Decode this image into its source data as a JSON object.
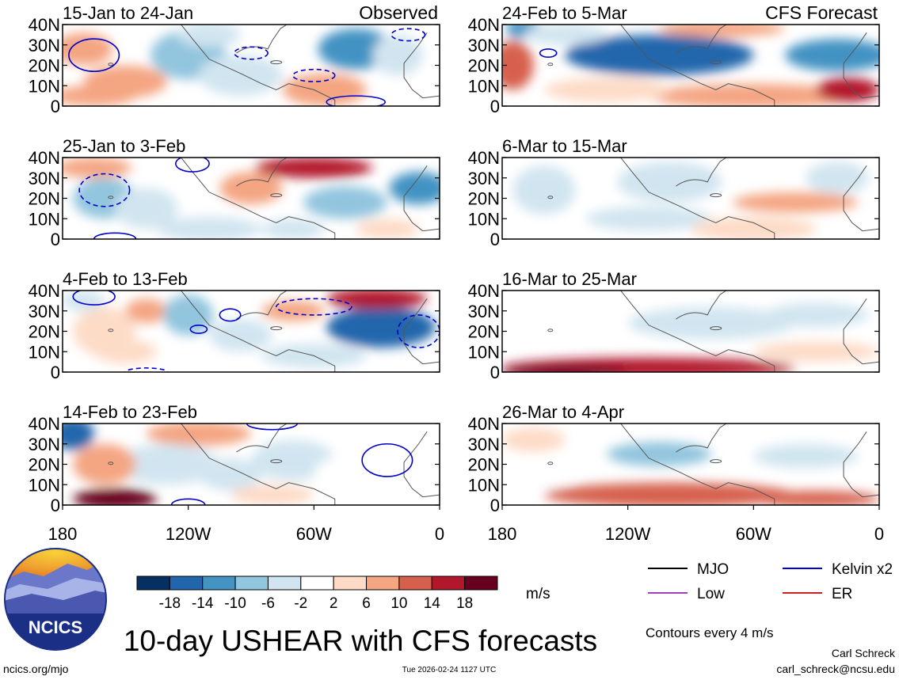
{
  "chart_data": {
    "type": "heatmap",
    "title": "10-day USHEAR with CFS forecasts",
    "variable": "USHEAR",
    "units": "m/s",
    "contour_interval_text": "Contours every 4 m/s",
    "x_range": [
      180,
      0
    ],
    "x_ticks": [
      "180",
      "120W",
      "60W",
      "0"
    ],
    "y_range": [
      0,
      40
    ],
    "y_ticks": [
      "0",
      "10N",
      "20N",
      "30N",
      "40N"
    ],
    "colorbar": {
      "labels": [
        "-18",
        "-14",
        "-10",
        "-6",
        "-2",
        "2",
        "6",
        "10",
        "14",
        "18"
      ],
      "colors": [
        "#053061",
        "#2166ac",
        "#4393c3",
        "#92c5de",
        "#d1e5f0",
        "#ffffff",
        "#fddbc7",
        "#f4a582",
        "#d6604d",
        "#b2182b",
        "#67001f"
      ]
    },
    "legend": [
      {
        "name": "MJO",
        "color": "#000000"
      },
      {
        "name": "Kelvin x2",
        "color": "#0000cc"
      },
      {
        "name": "Low",
        "color": "#a040c0"
      },
      {
        "name": "ER",
        "color": "#cc2020"
      }
    ],
    "column_headers": {
      "left": "Observed",
      "right": "CFS Forecast"
    },
    "panels": [
      {
        "label": "15-Jan to 24-Jan",
        "column": "observed",
        "blobs": [
          [
            -170,
            28,
            14,
            8,
            8
          ],
          [
            -150,
            12,
            20,
            8,
            6
          ],
          [
            -120,
            25,
            18,
            12,
            -8
          ],
          [
            -95,
            15,
            20,
            10,
            -6
          ],
          [
            -40,
            28,
            18,
            10,
            -12
          ],
          [
            -55,
            8,
            20,
            8,
            6
          ],
          [
            -20,
            25,
            12,
            10,
            -6
          ],
          [
            -165,
            5,
            20,
            5,
            6
          ],
          [
            -110,
            35,
            15,
            6,
            -4
          ]
        ],
        "kelvin": [
          [
            -165,
            25,
            12,
            8,
            0
          ],
          [
            -40,
            2,
            14,
            3,
            0
          ]
        ],
        "kelvin_dashed": [
          [
            -90,
            26,
            8,
            3,
            0
          ],
          [
            -60,
            15,
            10,
            3,
            0
          ],
          [
            -15,
            35,
            8,
            3,
            0
          ]
        ]
      },
      {
        "label": "25-Jan to 3-Feb",
        "column": "observed",
        "blobs": [
          [
            -165,
            35,
            18,
            5,
            8
          ],
          [
            -160,
            20,
            15,
            10,
            -8
          ],
          [
            -60,
            35,
            28,
            5,
            14
          ],
          [
            -90,
            25,
            15,
            8,
            8
          ],
          [
            -45,
            18,
            20,
            8,
            -10
          ],
          [
            -10,
            25,
            14,
            8,
            -12
          ],
          [
            -110,
            5,
            25,
            6,
            -6
          ],
          [
            -70,
            5,
            15,
            5,
            -4
          ],
          [
            -140,
            15,
            15,
            10,
            -4
          ],
          [
            -25,
            5,
            15,
            5,
            4
          ]
        ],
        "kelvin": [
          [
            -118,
            37,
            8,
            4,
            0
          ],
          [
            -155,
            0,
            10,
            3,
            0
          ]
        ],
        "kelvin_dashed": [
          [
            -160,
            24,
            12,
            8,
            0
          ]
        ]
      },
      {
        "label": "4-Feb to 13-Feb",
        "column": "observed",
        "blobs": [
          [
            -28,
            22,
            26,
            10,
            -18
          ],
          [
            -30,
            36,
            24,
            5,
            14
          ],
          [
            -140,
            30,
            10,
            6,
            8
          ],
          [
            -120,
            28,
            12,
            10,
            -8
          ],
          [
            -95,
            18,
            15,
            8,
            -6
          ],
          [
            -70,
            30,
            15,
            5,
            6
          ],
          [
            -160,
            20,
            15,
            12,
            4
          ],
          [
            -60,
            8,
            25,
            6,
            -4
          ],
          [
            -170,
            35,
            10,
            5,
            -4
          ],
          [
            -150,
            10,
            15,
            6,
            4
          ]
        ],
        "kelvin": [
          [
            -165,
            37,
            10,
            4,
            0
          ],
          [
            -115,
            21,
            4,
            2,
            0
          ],
          [
            -100,
            28,
            5,
            3,
            0
          ]
        ],
        "kelvin_dashed": [
          [
            -60,
            32,
            18,
            4,
            0
          ],
          [
            -10,
            20,
            10,
            8,
            0
          ],
          [
            -140,
            0,
            10,
            2,
            0
          ]
        ]
      },
      {
        "label": "14-Feb to 23-Feb",
        "column": "observed",
        "blobs": [
          [
            -175,
            35,
            10,
            8,
            -18
          ],
          [
            -155,
            3,
            20,
            5,
            18
          ],
          [
            -115,
            35,
            25,
            6,
            8
          ],
          [
            -130,
            20,
            25,
            10,
            -6
          ],
          [
            -100,
            15,
            15,
            8,
            -4
          ],
          [
            -70,
            22,
            20,
            10,
            -4
          ],
          [
            -40,
            15,
            20,
            10,
            -2
          ],
          [
            -160,
            20,
            15,
            10,
            6
          ],
          [
            -80,
            5,
            20,
            5,
            4
          ]
        ],
        "kelvin": [
          [
            -25,
            22,
            12,
            8,
            0
          ],
          [
            -80,
            40,
            12,
            3,
            0
          ],
          [
            -120,
            0,
            8,
            3,
            0
          ]
        ],
        "kelvin_dashed": []
      },
      {
        "label": "24-Feb to 5-Mar",
        "column": "forecast",
        "blobs": [
          [
            -105,
            25,
            45,
            10,
            -18
          ],
          [
            -20,
            25,
            25,
            8,
            -14
          ],
          [
            -175,
            20,
            10,
            12,
            12
          ],
          [
            -170,
            38,
            8,
            5,
            -14
          ],
          [
            -60,
            5,
            50,
            6,
            8
          ],
          [
            -15,
            8,
            15,
            6,
            14
          ],
          [
            -130,
            8,
            30,
            6,
            4
          ],
          [
            -75,
            38,
            30,
            4,
            6
          ],
          [
            -150,
            35,
            20,
            5,
            -4
          ]
        ],
        "kelvin": [
          [
            -158,
            26,
            4,
            2,
            0
          ]
        ],
        "kelvin_dashed": []
      },
      {
        "label": "6-Mar to 15-Mar",
        "column": "forecast",
        "blobs": [
          [
            -160,
            24,
            15,
            12,
            -6
          ],
          [
            -100,
            28,
            25,
            10,
            -4
          ],
          [
            -40,
            18,
            30,
            5,
            8
          ],
          [
            -110,
            10,
            30,
            6,
            -4
          ],
          [
            -60,
            5,
            30,
            6,
            4
          ],
          [
            -20,
            30,
            15,
            8,
            -4
          ],
          [
            -160,
            5,
            20,
            5,
            -2
          ]
        ],
        "kelvin": [],
        "kelvin_dashed": []
      },
      {
        "label": "16-Mar to 25-Mar",
        "column": "forecast",
        "blobs": [
          [
            -110,
            2,
            70,
            5,
            14
          ],
          [
            -150,
            0,
            30,
            3,
            18
          ],
          [
            -80,
            24,
            40,
            8,
            -6
          ],
          [
            -30,
            28,
            25,
            6,
            -4
          ],
          [
            -30,
            10,
            30,
            5,
            4
          ],
          [
            -160,
            30,
            20,
            6,
            -2
          ]
        ],
        "kelvin": [],
        "kelvin_dashed": []
      },
      {
        "label": "26-Mar to 4-Apr",
        "column": "forecast",
        "blobs": [
          [
            -100,
            5,
            60,
            6,
            10
          ],
          [
            -30,
            3,
            30,
            4,
            12
          ],
          [
            -105,
            25,
            25,
            6,
            -8
          ],
          [
            -35,
            24,
            25,
            6,
            -4
          ],
          [
            -165,
            32,
            15,
            6,
            4
          ],
          [
            -160,
            15,
            15,
            6,
            -2
          ]
        ],
        "kelvin": [],
        "kelvin_dashed": []
      }
    ]
  },
  "logo": {
    "text": "NCICS"
  },
  "footer": {
    "url": "ncics.org/mjo",
    "timestamp": "Tue 2026-02-24 1127 UTC",
    "author": "Carl Schreck",
    "email": "carl_schreck@ncsu.edu"
  }
}
